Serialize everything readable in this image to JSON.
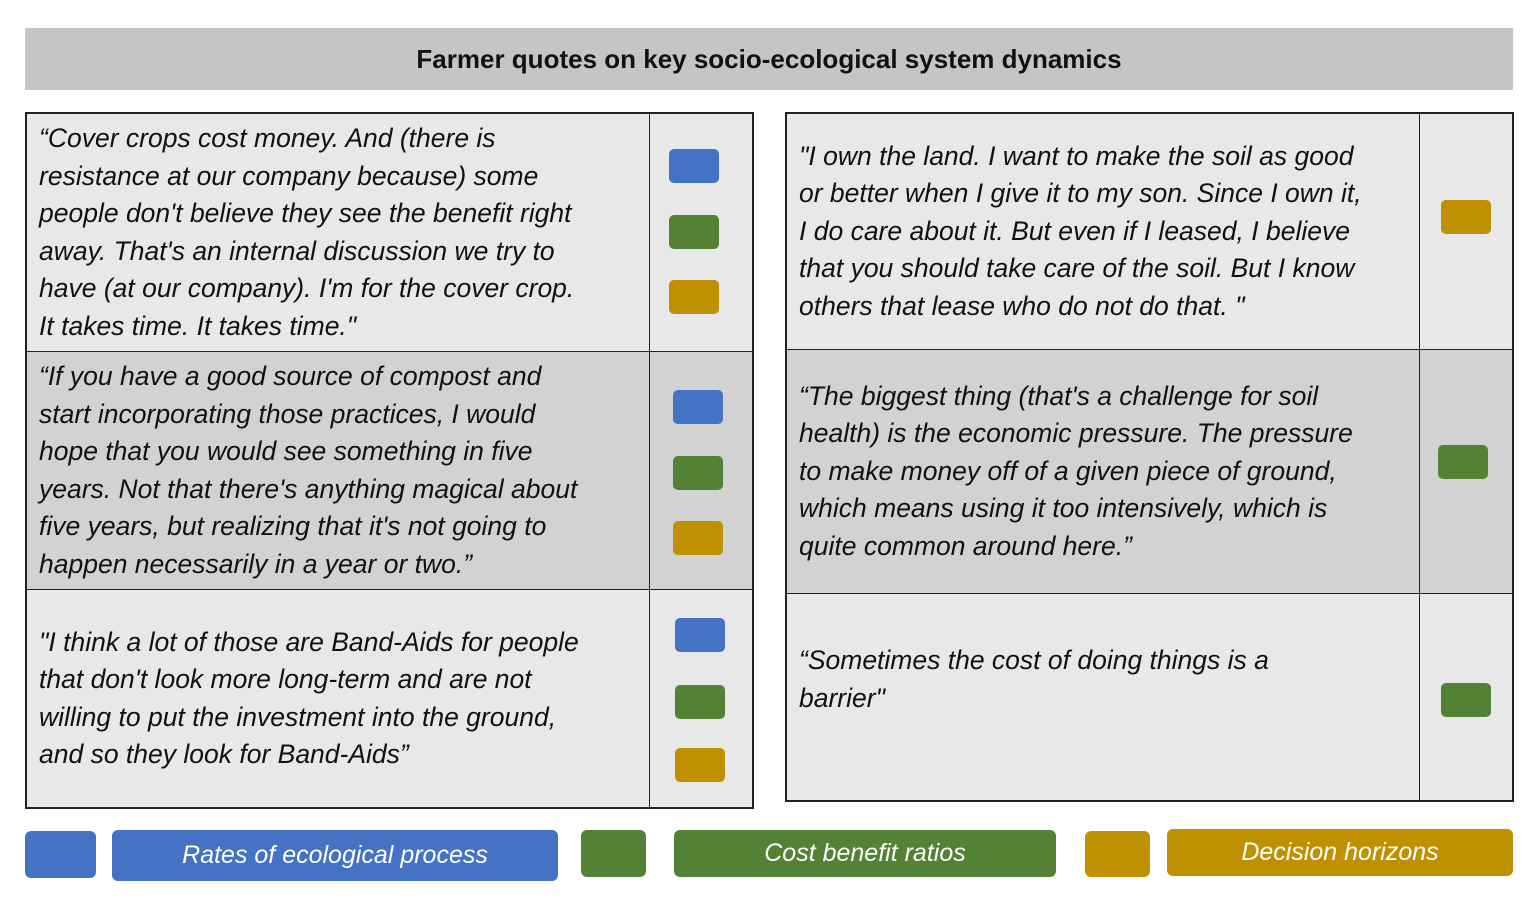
{
  "title": "Farmer quotes on key socio-ecological system dynamics",
  "colors": {
    "rates": "#4472c4",
    "cost": "#548235",
    "decision": "#bf9000",
    "row_light": "#e8e8e8",
    "row_dark": "#d2d2d2",
    "title_bg": "#c5c5c5"
  },
  "left_quotes": [
    {
      "text": "“Cover crops cost money. And (there is\nresistance at our company because) some\npeople don't believe they see the benefit right\naway. That's an internal discussion we try to\nhave (at our company). I'm for the cover crop.\nIt takes time. It takes time.\"",
      "tags": [
        "rates",
        "cost",
        "decision"
      ]
    },
    {
      "text": "“If you have a good source of compost and\nstart incorporating those practices, I would\nhope that you would see something in five\nyears. Not that there's anything magical about\nfive years, but realizing that it's not going to\nhappen necessarily in a year or two.”",
      "tags": [
        "rates",
        "cost",
        "decision"
      ]
    },
    {
      "text": "\"I think a lot of those are Band-Aids for people\nthat don't look more long-term and are not\nwilling to put the investment into the ground,\nand so they look for Band-Aids”",
      "tags": [
        "rates",
        "cost",
        "decision"
      ]
    }
  ],
  "right_quotes": [
    {
      "text": "\"I own the land. I want to make the soil as good\nor better when I give it to my son. Since I own it,\nI do care about it. But even if I leased, I believe\nthat you should take care of the soil. But I know\nothers that lease who do not do that. \"",
      "tags": [
        "decision"
      ]
    },
    {
      "text": "“The biggest thing (that's a challenge for soil\nhealth) is the economic pressure. The pressure\nto make money off of a given piece of ground,\nwhich means using it too intensively, which is\nquite common around here.”",
      "tags": [
        "cost"
      ]
    },
    {
      "text": "“Sometimes the cost of doing things is a\nbarrier\"",
      "tags": [
        "cost"
      ]
    }
  ],
  "legend": [
    {
      "key": "rates",
      "label": "Rates of ecological process"
    },
    {
      "key": "cost",
      "label": "Cost benefit ratios"
    },
    {
      "key": "decision",
      "label": "Decision horizons"
    }
  ]
}
